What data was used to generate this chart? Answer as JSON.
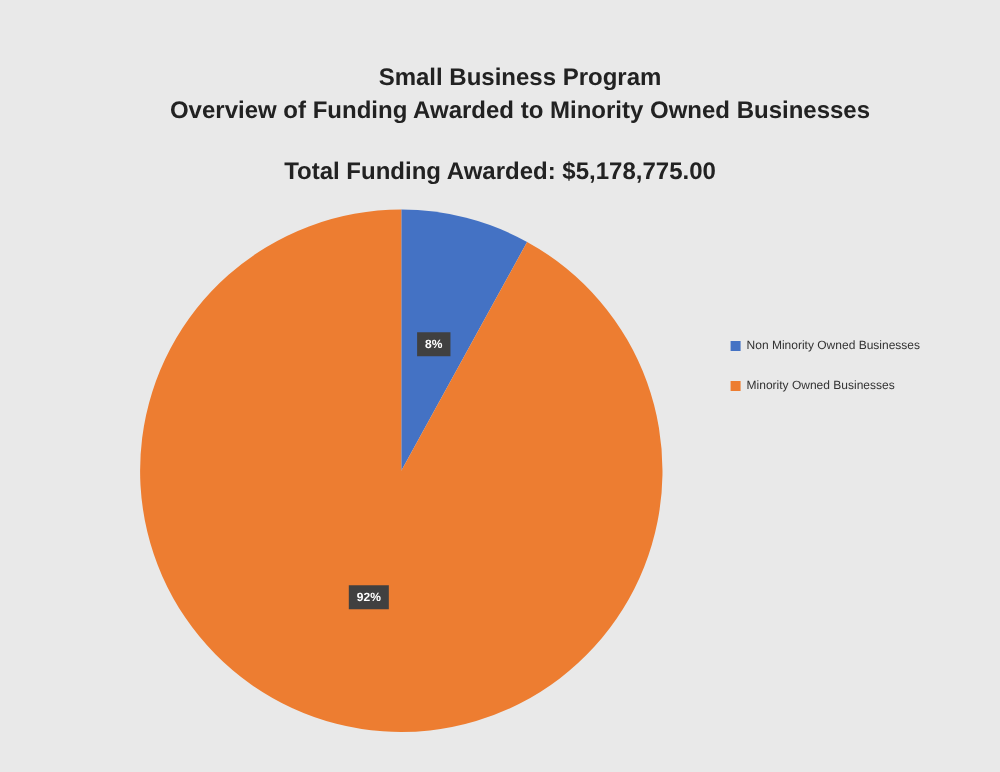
{
  "chart_data": {
    "type": "pie",
    "title": "Small Business Program",
    "subtitle": "Overview of Funding Awarded to Minority Owned Businesses",
    "annotations": [
      "Total Funding Awarded: $5,178,775.00"
    ],
    "categories": [
      "Non Minority Owned Businesses",
      "Minority Owned Businesses"
    ],
    "values": [
      8,
      92
    ],
    "colors": [
      "#4472c4",
      "#ed7d31"
    ],
    "value_labels": [
      "8%",
      "92%"
    ],
    "legend": "right"
  }
}
